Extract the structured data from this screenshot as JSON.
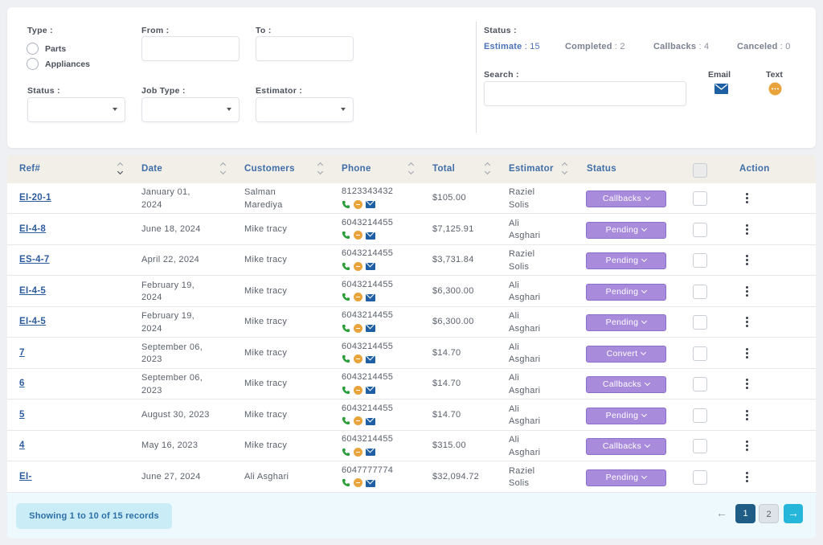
{
  "filters": {
    "type_label": "Type :",
    "type_options": [
      "Parts",
      "Appliances"
    ],
    "from_label": "From :",
    "to_label": "To :",
    "status_label": "Status :",
    "job_type_label": "Job Type :",
    "estimator_label": "Estimator :",
    "from_value": "",
    "to_value": "",
    "status_value": "",
    "job_type_value": "",
    "estimator_value": ""
  },
  "status_summary": {
    "label": "Status :",
    "items": [
      {
        "label": "Estimate",
        "value": ": 15"
      },
      {
        "label": "Completed",
        "value": ": 2"
      },
      {
        "label": "Callbacks",
        "value": ": 4"
      },
      {
        "label": "Canceled",
        "value": ": 0"
      }
    ]
  },
  "search": {
    "label": "Search :",
    "value": ""
  },
  "actions": {
    "email_label": "Email",
    "text_label": "Text"
  },
  "table": {
    "columns": [
      "Ref#",
      "Date",
      "Customers",
      "Phone",
      "Total",
      "Estimator",
      "Status",
      "Action"
    ],
    "rows": [
      {
        "ref": "EI-20-1",
        "date1": "January 01,",
        "date2": "2024",
        "cust1": "Salman",
        "cust2": "Marediya",
        "phone": "8123343432",
        "total": "$105.00",
        "est1": "Raziel",
        "est2": "Solis",
        "status": "Callbacks"
      },
      {
        "ref": "EI-4-8",
        "date1": "June 18, 2024",
        "date2": "",
        "cust1": "Mike tracy",
        "cust2": "",
        "phone": "6043214455",
        "total": "$7,125.91",
        "est1": "Ali",
        "est2": "Asghari",
        "status": "Pending"
      },
      {
        "ref": "ES-4-7",
        "date1": "April 22, 2024",
        "date2": "",
        "cust1": "Mike tracy",
        "cust2": "",
        "phone": "6043214455",
        "total": "$3,731.84",
        "est1": "Raziel",
        "est2": "Solis",
        "status": "Pending"
      },
      {
        "ref": "EI-4-5",
        "date1": "February 19,",
        "date2": "2024",
        "cust1": "Mike tracy",
        "cust2": "",
        "phone": "6043214455",
        "total": "$6,300.00",
        "est1": "Ali",
        "est2": "Asghari",
        "status": "Pending"
      },
      {
        "ref": "EI-4-5",
        "date1": "February 19,",
        "date2": "2024",
        "cust1": "Mike tracy",
        "cust2": "",
        "phone": "6043214455",
        "total": "$6,300.00",
        "est1": "Ali",
        "est2": "Asghari",
        "status": "Pending"
      },
      {
        "ref": "7",
        "date1": "September 06,",
        "date2": "2023",
        "cust1": "Mike tracy",
        "cust2": "",
        "phone": "6043214455",
        "total": "$14.70",
        "est1": "Ali",
        "est2": "Asghari",
        "status": "Convert"
      },
      {
        "ref": "6",
        "date1": "September 06,",
        "date2": "2023",
        "cust1": "Mike tracy",
        "cust2": "",
        "phone": "6043214455",
        "total": "$14.70",
        "est1": "Ali",
        "est2": "Asghari",
        "status": "Callbacks"
      },
      {
        "ref": "5",
        "date1": "August 30, 2023",
        "date2": "",
        "cust1": "Mike tracy",
        "cust2": "",
        "phone": "6043214455",
        "total": "$14.70",
        "est1": "Ali",
        "est2": "Asghari",
        "status": "Pending"
      },
      {
        "ref": "4",
        "date1": "May 16, 2023",
        "date2": "",
        "cust1": "Mike tracy",
        "cust2": "",
        "phone": "6043214455",
        "total": "$315.00",
        "est1": "Ali",
        "est2": "Asghari",
        "status": "Callbacks"
      },
      {
        "ref": "EI-",
        "date1": "June 27, 2024",
        "date2": "",
        "cust1": "Ali Asghari",
        "cust2": "",
        "phone": "6047777774",
        "total": "$32,094.72",
        "est1": "Raziel",
        "est2": "Solis",
        "status": "Pending"
      }
    ]
  },
  "footer": {
    "records_text": "Showing 1 to 10 of 15 records",
    "pages": [
      "1",
      "2"
    ],
    "current_page": "1"
  },
  "colors": {
    "accent": "#3f6da8",
    "status_button": "#a98bdc",
    "page_active": "#1f5d86",
    "next_button": "#26b6d9"
  }
}
